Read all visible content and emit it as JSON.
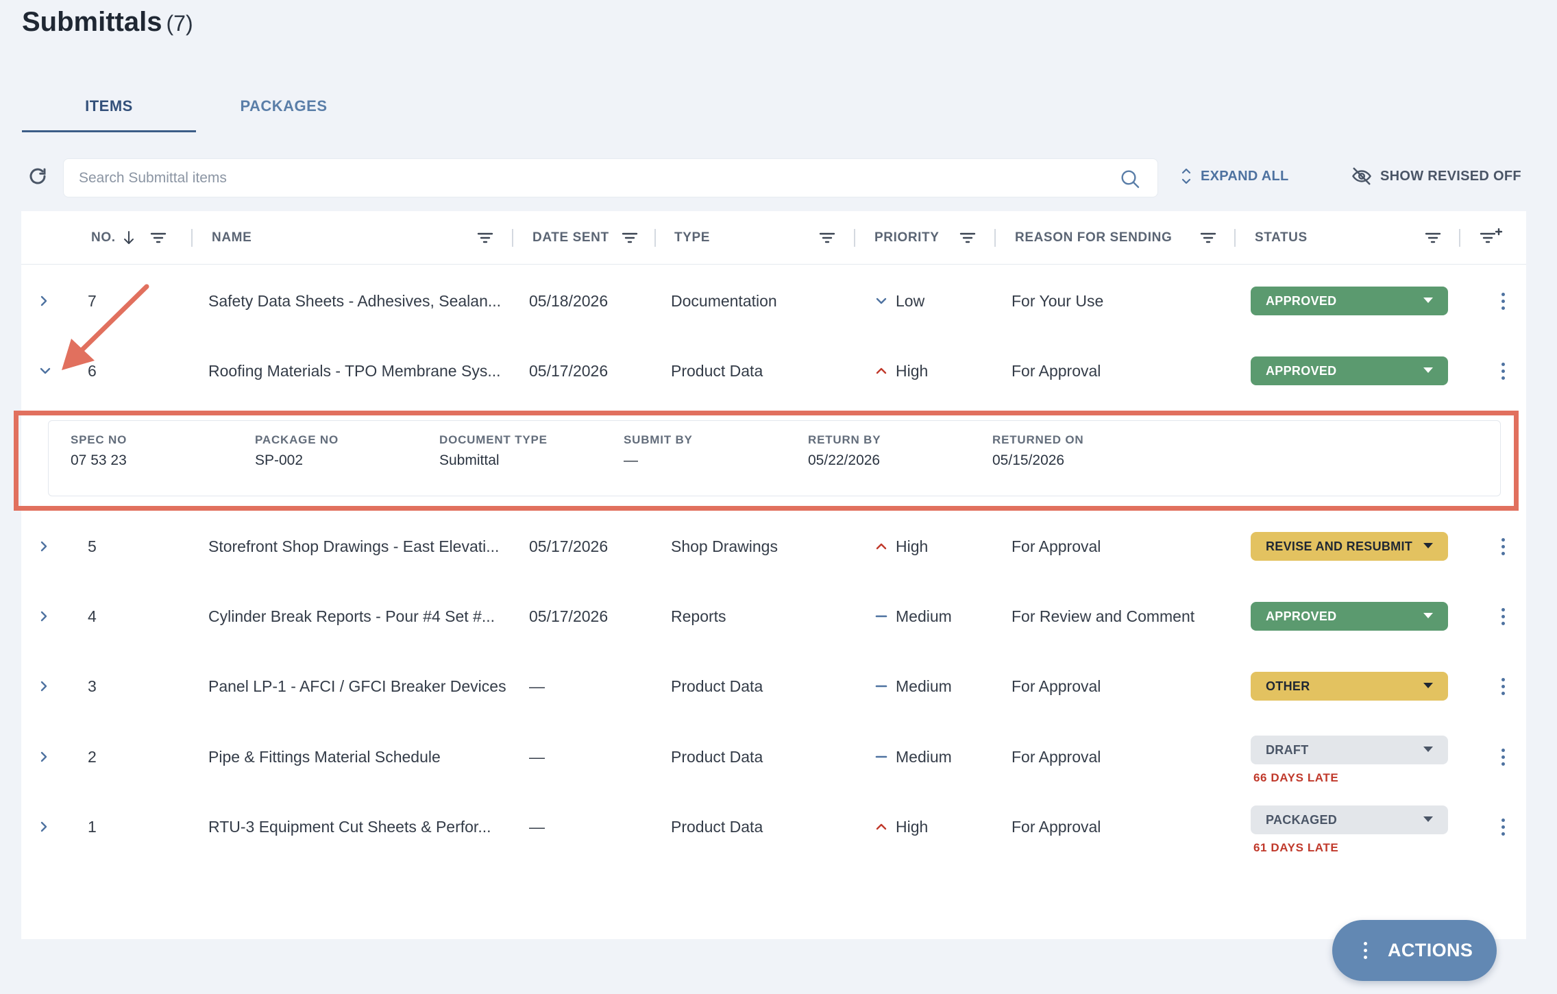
{
  "page": {
    "title": "Submittals",
    "count": "(7)"
  },
  "tabs": [
    {
      "label": "ITEMS",
      "active": true
    },
    {
      "label": "PACKAGES",
      "active": false
    }
  ],
  "toolbar": {
    "search_placeholder": "Search Submittal items",
    "expand_all": "EXPAND ALL",
    "show_revised": "SHOW REVISED OFF"
  },
  "columns": {
    "no": "NO.",
    "name": "NAME",
    "date_sent": "DATE SENT",
    "type": "TYPE",
    "priority": "PRIORITY",
    "reason": "REASON FOR SENDING",
    "status": "STATUS"
  },
  "rows": [
    {
      "no": "7",
      "name": "Safety Data Sheets - Adhesives, Sealan...",
      "date_sent": "05/18/2026",
      "type": "Documentation",
      "priority": "Low",
      "priority_icon": "chevron-down-icon",
      "reason": "For Your Use",
      "status": "APPROVED",
      "status_color": "#5b9a6f",
      "late": "",
      "expanded": false
    },
    {
      "no": "6",
      "name": "Roofing Materials - TPO Membrane Sys...",
      "date_sent": "05/17/2026",
      "type": "Product Data",
      "priority": "High",
      "priority_icon": "chevron-up-icon",
      "reason": "For Approval",
      "status": "APPROVED",
      "status_color": "#5b9a6f",
      "late": "",
      "expanded": true
    },
    {
      "no": "5",
      "name": "Storefront Shop Drawings - East Elevati...",
      "date_sent": "05/17/2026",
      "type": "Shop Drawings",
      "priority": "High",
      "priority_icon": "chevron-up-icon",
      "reason": "For Approval",
      "status": "REVISE AND RESUBMIT",
      "status_color": "#e3c260",
      "late": "",
      "expanded": false
    },
    {
      "no": "4",
      "name": "Cylinder Break Reports - Pour #4 Set #...",
      "date_sent": "05/17/2026",
      "type": "Reports",
      "priority": "Medium",
      "priority_icon": "dash-icon",
      "reason": "For Review and Comment",
      "status": "APPROVED",
      "status_color": "#5b9a6f",
      "late": "",
      "expanded": false
    },
    {
      "no": "3",
      "name": "Panel LP-1 - AFCI / GFCI Breaker Devices",
      "date_sent": "—",
      "type": "Product Data",
      "priority": "Medium",
      "priority_icon": "dash-icon",
      "reason": "For Approval",
      "status": "OTHER",
      "status_color": "#e3c260",
      "late": "",
      "expanded": false
    },
    {
      "no": "2",
      "name": "Pipe & Fittings Material Schedule",
      "date_sent": "—",
      "type": "Product Data",
      "priority": "Medium",
      "priority_icon": "dash-icon",
      "reason": "For Approval",
      "status": "DRAFT",
      "status_color": "#e3e6ea",
      "late": "66 DAYS LATE",
      "expanded": false
    },
    {
      "no": "1",
      "name": "RTU-3 Equipment Cut Sheets & Perfor...",
      "date_sent": "—",
      "type": "Product Data",
      "priority": "High",
      "priority_icon": "chevron-up-icon",
      "reason": "For Approval",
      "status": "PACKAGED",
      "status_color": "#e3e6ea",
      "late": "61 DAYS LATE",
      "expanded": false
    }
  ],
  "detail": {
    "fields": [
      {
        "label": "SPEC NO",
        "value": "07 53 23"
      },
      {
        "label": "PACKAGE NO",
        "value": "SP-002"
      },
      {
        "label": "DOCUMENT TYPE",
        "value": "Submittal"
      },
      {
        "label": "SUBMIT BY",
        "value": "—"
      },
      {
        "label": "RETURN BY",
        "value": "05/22/2026"
      },
      {
        "label": "RETURNED ON",
        "value": "05/15/2026"
      }
    ]
  },
  "actions_button": "ACTIONS",
  "colors": {
    "accent": "#4e72a0",
    "annotation": "#e1705e",
    "late": "#c0392b",
    "priority_high": "#c0392b",
    "priority_low": "#4e72a0"
  }
}
